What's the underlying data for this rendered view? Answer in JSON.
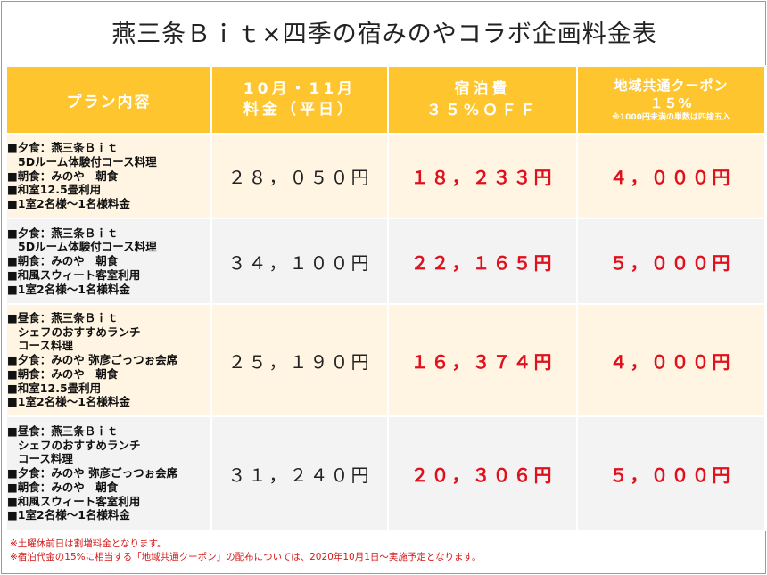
{
  "title": "燕三条Ｂｉｔ×四季の宿みのやコラボ企画料金表",
  "header": {
    "plan": "プラン内容",
    "price_line1": "10月・11月",
    "price_line2": "料金（平日）",
    "stay_line1": "宿泊費",
    "stay_line2": "３５%ＯＦＦ",
    "coupon_line1": "地域共通クーポン",
    "coupon_line2": "１５%",
    "coupon_note": "※1000円未満の単数は四捨五入"
  },
  "rows": [
    {
      "plan": [
        "■夕食：燕三条Ｂｉｔ",
        "5Dルーム体験付コース料理",
        "■朝食：みのや　朝食",
        "■和室12.5畳利用",
        "■1室2名様～1名様料金"
      ],
      "price": "２８，０５０円",
      "stay": "１８，２３３円",
      "coupon": "４，０００円"
    },
    {
      "plan": [
        "■夕食：燕三条Ｂｉｔ",
        "5Dルーム体験付コース料理",
        "■朝食：みのや　朝食",
        "■和風スウィート客室利用",
        "■1室2名様～1名様料金"
      ],
      "price": "３４，１００円",
      "stay": "２２，１６５円",
      "coupon": "５，０００円"
    },
    {
      "plan": [
        "■昼食：燕三条Ｂｉｔ",
        "シェフのおすすめランチ",
        "コース料理",
        "■夕食：みのや 弥彦ごっつぉ会席",
        "■朝食：みのや　朝食",
        "■和室12.5畳利用",
        "■1室2名様～1名様料金"
      ],
      "price": "２５，１９０円",
      "stay": "１６，３７４円",
      "coupon": "４，０００円"
    },
    {
      "plan": [
        "■昼食：燕三条Ｂｉｔ",
        "シェフのおすすめランチ",
        "コース料理",
        "■夕食：みのや 弥彦ごっつぉ会席",
        "■朝食：みのや　朝食",
        "■和風スウィート客室利用",
        "■1室2名様～1名様料金"
      ],
      "price": "３１，２４０円",
      "stay": "２０，３０６円",
      "coupon": "５，０００円"
    }
  ],
  "notes": [
    "※土曜休前日は割増料金となります。",
    "※宿泊代金の15%に相当する「地域共通クーポン」の配布については、2020年10月1日～実施予定となります。"
  ]
}
